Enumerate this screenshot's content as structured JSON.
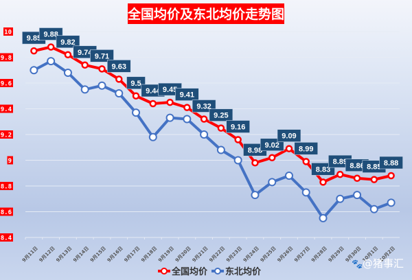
{
  "chart_data": {
    "type": "line",
    "title": "全国均价及东北均价走势图",
    "xlabel": "",
    "ylabel": "",
    "ylim": [
      8.4,
      10
    ],
    "yticks": [
      "10",
      "9.8",
      "9.6",
      "9.4",
      "9.2",
      "9",
      "8.8",
      "8.6",
      "8.4"
    ],
    "grid": true,
    "legend_position": "bottom",
    "categories": [
      "9月11日",
      "9月12日",
      "9月13日",
      "9月14日",
      "9月15日",
      "9月16日",
      "9月17日",
      "9月18日",
      "9月19日",
      "9月20日",
      "9月21日",
      "9月22日",
      "9月23日",
      "9月24日",
      "9月25日",
      "9月26日",
      "9月27日",
      "9月28日",
      "9月29日",
      "9月30日",
      "10月1日",
      "10月2日"
    ],
    "series": [
      {
        "name": "全国均价",
        "color": "#ff0000",
        "labeled": true,
        "values": [
          9.85,
          9.88,
          9.82,
          9.74,
          9.71,
          9.63,
          9.5,
          9.44,
          9.45,
          9.41,
          9.32,
          9.25,
          9.16,
          8.98,
          9.02,
          9.09,
          8.99,
          8.83,
          8.89,
          8.86,
          8.85,
          8.88
        ]
      },
      {
        "name": "东北均价",
        "color": "#4472c4",
        "labeled": false,
        "values": [
          9.7,
          9.77,
          9.68,
          9.55,
          9.58,
          9.52,
          9.37,
          9.18,
          9.33,
          9.32,
          9.2,
          9.08,
          9.0,
          8.73,
          8.83,
          8.88,
          8.75,
          8.55,
          8.7,
          8.73,
          8.62,
          8.67
        ]
      }
    ]
  },
  "watermark": "@猪事汇"
}
